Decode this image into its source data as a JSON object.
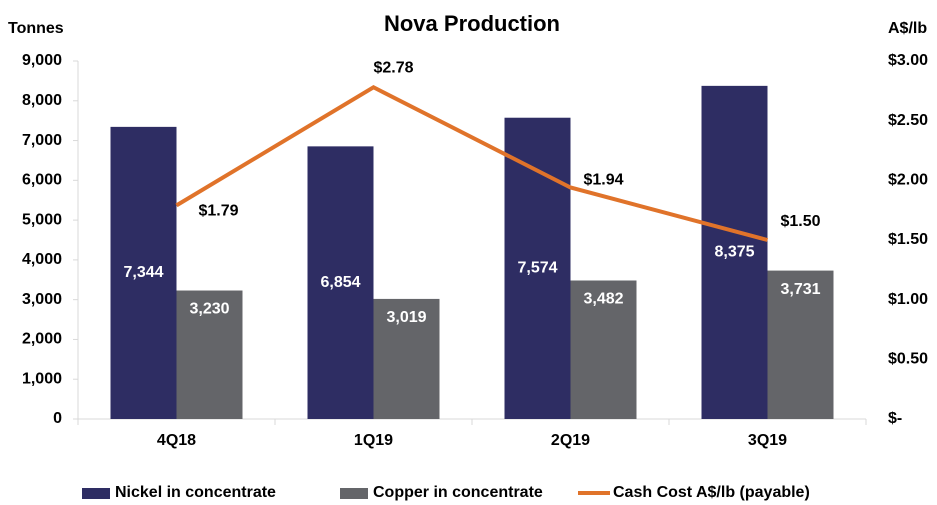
{
  "chart_data": {
    "type": "bar_line",
    "title": "Nova Production",
    "y_label": "Tonnes",
    "y2_label": "A$/lb",
    "categories": [
      "4Q18",
      "1Q19",
      "2Q19",
      "3Q19"
    ],
    "series": [
      {
        "name": "Nickel in concentrate",
        "type": "bar",
        "color": "#2e2d63",
        "values": [
          7344,
          6854,
          7574,
          8375
        ],
        "value_labels": [
          "7,344",
          "6,854",
          "7,574",
          "8,375"
        ]
      },
      {
        "name": "Copper in concentrate",
        "type": "bar",
        "color": "#646569",
        "values": [
          3230,
          3019,
          3482,
          3731
        ],
        "value_labels": [
          "3,230",
          "3,019",
          "3,482",
          "3,731"
        ]
      },
      {
        "name": "Cash Cost A$/lb (payable)",
        "type": "line",
        "axis": "y2",
        "color": "#e0732a",
        "values": [
          1.79,
          2.78,
          1.94,
          1.5
        ],
        "value_labels": [
          "$1.79",
          "$2.78",
          "$1.94",
          "$1.50"
        ]
      }
    ],
    "ylim": [
      0,
      9000
    ],
    "yticks": [
      0,
      {
        "value": 1000,
        "label": "1,000"
      },
      {
        "value": 2000,
        "label": "2,000"
      },
      {
        "value": 3000,
        "label": "3,000"
      },
      {
        "value": 4000,
        "label": "4,000"
      },
      {
        "value": 5000,
        "label": "5,000"
      },
      {
        "value": 6000,
        "label": "6,000"
      },
      {
        "value": 7000,
        "label": "7,000"
      },
      {
        "value": 8000,
        "label": "8,000"
      },
      {
        "value": 9000,
        "label": "9,000"
      }
    ],
    "y2lim": [
      0,
      3
    ],
    "y2ticks": [
      {
        "value": 0,
        "label": "$-"
      },
      {
        "value": 0.5,
        "label": "$0.50"
      },
      {
        "value": 1,
        "label": "$1.00"
      },
      {
        "value": 1.5,
        "label": "$1.50"
      },
      {
        "value": 2,
        "label": "$2.00"
      },
      {
        "value": 2.5,
        "label": "$2.50"
      },
      {
        "value": 3,
        "label": "$3.00"
      }
    ],
    "legend": "bottom"
  }
}
